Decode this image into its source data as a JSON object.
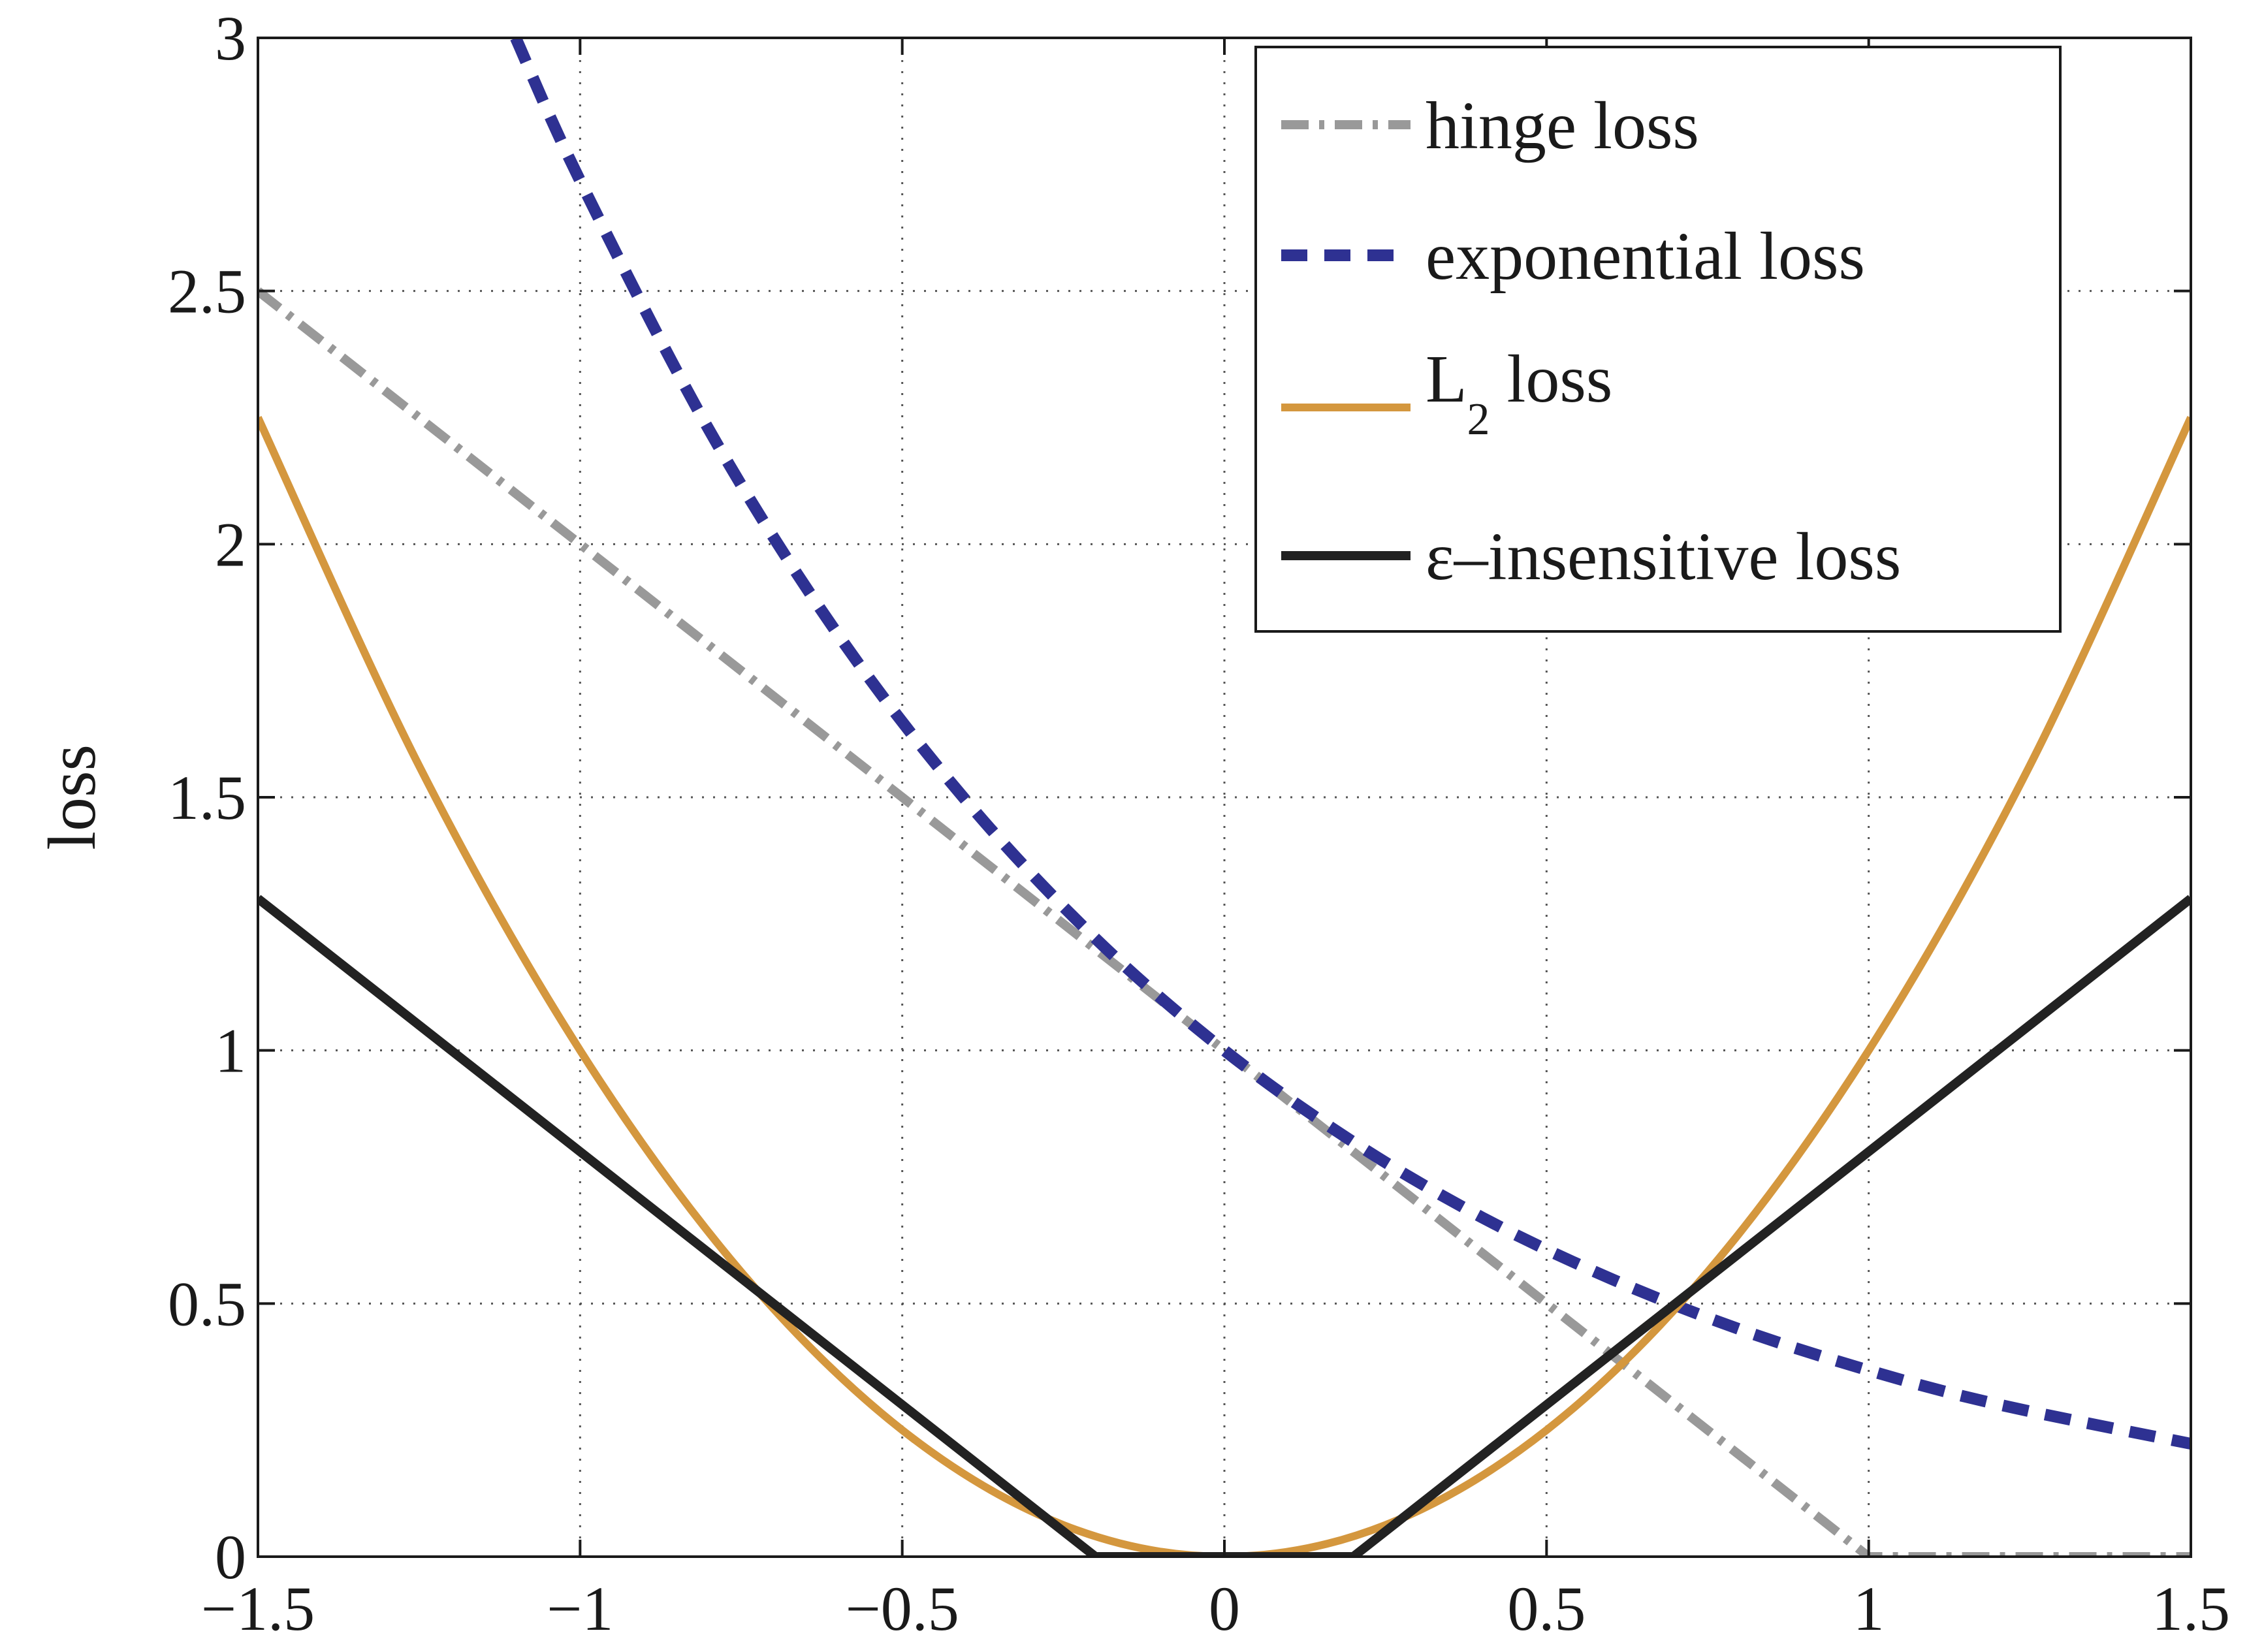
{
  "chart_data": {
    "type": "line",
    "xlabel": "",
    "ylabel": "loss",
    "xlim": [
      -1.5,
      1.5
    ],
    "ylim": [
      0,
      3
    ],
    "xticks": [
      -1.5,
      -1,
      -0.5,
      0,
      0.5,
      1,
      1.5
    ],
    "yticks": [
      0,
      0.5,
      1,
      1.5,
      2,
      2.5,
      3
    ],
    "xtick_labels": [
      "−1.5",
      "−1",
      "−0.5",
      "0",
      "0.5",
      "1",
      "1.5"
    ],
    "ytick_labels": [
      "0",
      "0.5",
      "1",
      "1.5",
      "2",
      "2.5",
      "3"
    ],
    "grid": true,
    "legend_position": "top-right",
    "series": [
      {
        "name": "hinge loss",
        "style": "dash-dot",
        "color": "#999999",
        "x": [
          -1.5,
          1,
          1.5
        ],
        "y": [
          2.5,
          0,
          0
        ]
      },
      {
        "name": "exponential loss",
        "style": "dashed",
        "color": "#2e3192",
        "x": [
          -1.1,
          -1.0,
          -0.8,
          -0.6,
          -0.4,
          -0.2,
          0,
          0.2,
          0.4,
          0.6,
          0.8,
          1.0,
          1.2,
          1.5
        ],
        "y": [
          3.0,
          2.718,
          2.226,
          1.822,
          1.492,
          1.221,
          1.0,
          0.819,
          0.67,
          0.549,
          0.449,
          0.368,
          0.301,
          0.223
        ]
      },
      {
        "name": "L2 loss",
        "name_main": "L",
        "name_sub": "2",
        "name_tail": " loss",
        "style": "solid",
        "color": "#d4973e",
        "x": [
          -1.5,
          -1.25,
          -1.0,
          -0.75,
          -0.5,
          -0.25,
          0,
          0.25,
          0.5,
          0.75,
          1.0,
          1.25,
          1.5
        ],
        "y": [
          2.25,
          1.5625,
          1.0,
          0.5625,
          0.25,
          0.0625,
          0,
          0.0625,
          0.25,
          0.5625,
          1.0,
          1.5625,
          2.25
        ]
      },
      {
        "name": "ε–insensitive loss",
        "style": "solid",
        "color": "#222222",
        "x": [
          -1.5,
          -0.2,
          0.2,
          1.5
        ],
        "y": [
          1.3,
          0,
          0,
          1.3
        ]
      }
    ]
  }
}
